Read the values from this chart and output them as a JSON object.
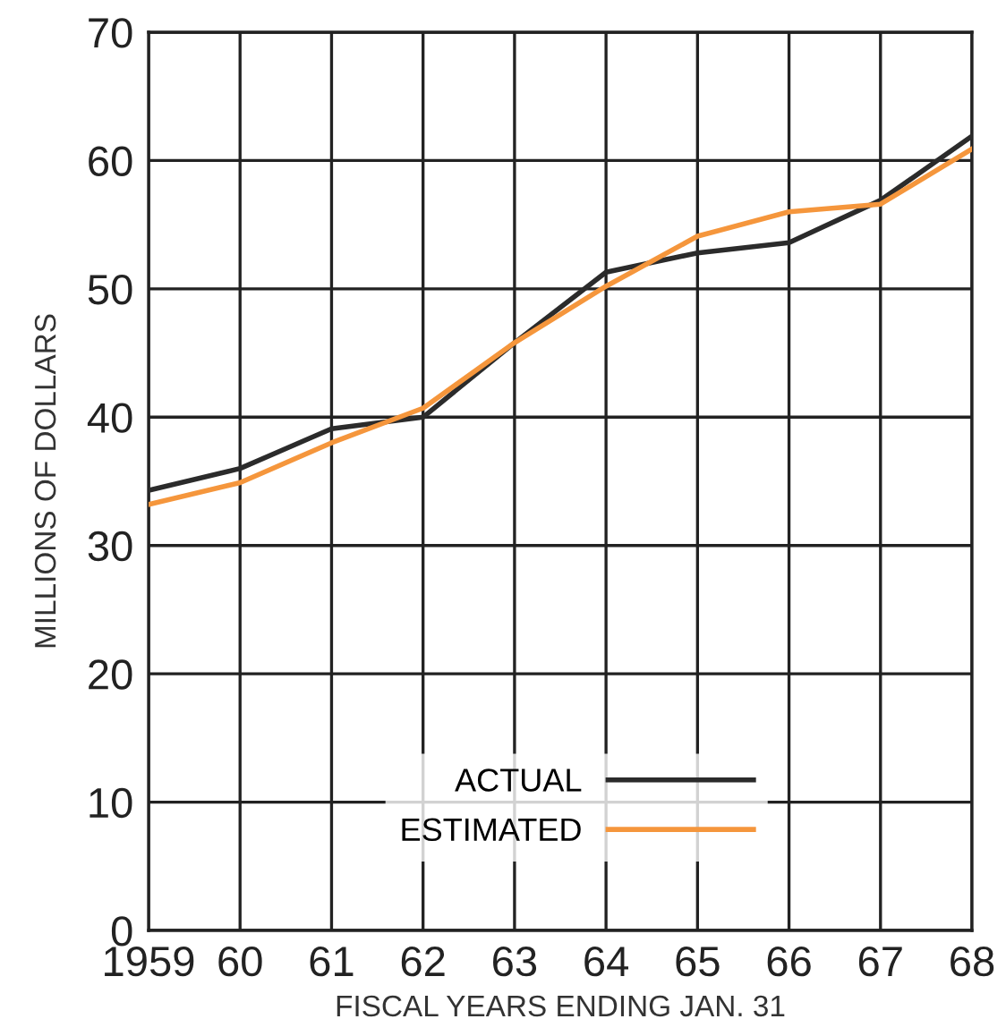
{
  "chart_data": {
    "type": "line",
    "xlabel": "FISCAL YEARS ENDING JAN. 31",
    "ylabel": "MILLIONS OF DOLLARS",
    "x": [
      1959,
      1960,
      1961,
      1962,
      1963,
      1964,
      1965,
      1966,
      1967,
      1968
    ],
    "series": [
      {
        "name": "ACTUAL",
        "color": "#2b2b2b",
        "values": [
          34.3,
          36.0,
          39.1,
          40.0,
          45.8,
          51.3,
          52.8,
          53.6,
          56.9,
          61.9
        ]
      },
      {
        "name": "ESTIMATED",
        "color": "#f5963c",
        "values": [
          33.2,
          34.9,
          38.0,
          40.7,
          45.8,
          50.2,
          54.1,
          56.0,
          56.6,
          60.9
        ]
      }
    ],
    "xlim": [
      1959,
      1968
    ],
    "ylim": [
      0,
      70
    ],
    "xticks": [
      {
        "value": 1959,
        "label": "1959"
      },
      {
        "value": 1960,
        "label": "60"
      },
      {
        "value": 1961,
        "label": "61"
      },
      {
        "value": 1962,
        "label": "62"
      },
      {
        "value": 1963,
        "label": "63"
      },
      {
        "value": 1964,
        "label": "64"
      },
      {
        "value": 1965,
        "label": "65"
      },
      {
        "value": 1966,
        "label": "66"
      },
      {
        "value": 1967,
        "label": "67"
      },
      {
        "value": 1968,
        "label": "68"
      }
    ],
    "yticks": [
      0,
      10,
      20,
      30,
      40,
      50,
      60,
      70
    ],
    "grid": true,
    "legend": "bottom right",
    "line_style": "solid",
    "marker": "none"
  }
}
